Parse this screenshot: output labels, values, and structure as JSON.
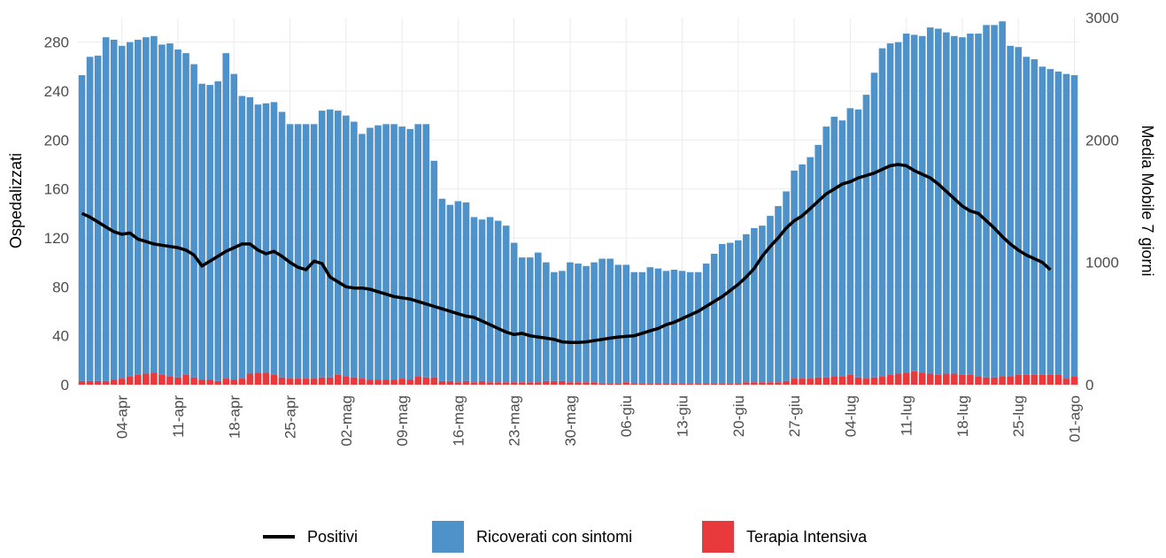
{
  "chart_data": {
    "type": "bar",
    "stacked": true,
    "y_label": "Ospedalizzati",
    "y2_label": "Media Mobile 7 giorni",
    "ylim": [
      0,
      300
    ],
    "yticks": [
      0,
      40,
      80,
      120,
      160,
      200,
      240,
      280
    ],
    "y2lim": [
      0,
      3000
    ],
    "y2ticks": [
      0,
      1000,
      2000,
      3000
    ],
    "grid": true,
    "legend": "bottom",
    "categories": [
      null,
      null,
      null,
      null,
      null,
      "04-apr",
      null,
      null,
      null,
      null,
      null,
      null,
      "11-apr",
      null,
      null,
      null,
      null,
      null,
      null,
      "18-apr",
      null,
      null,
      null,
      null,
      null,
      null,
      "25-apr",
      null,
      null,
      null,
      null,
      null,
      null,
      "02-mag",
      null,
      null,
      null,
      null,
      null,
      null,
      "09-mag",
      null,
      null,
      null,
      null,
      null,
      null,
      "16-mag",
      null,
      null,
      null,
      null,
      null,
      null,
      "23-mag",
      null,
      null,
      null,
      null,
      null,
      null,
      "30-mag",
      null,
      null,
      null,
      null,
      null,
      null,
      "06-giu",
      null,
      null,
      null,
      null,
      null,
      null,
      "13-giu",
      null,
      null,
      null,
      null,
      null,
      null,
      "20-giu",
      null,
      null,
      null,
      null,
      null,
      null,
      "27-giu",
      null,
      null,
      null,
      null,
      null,
      null,
      "04-lug",
      null,
      null,
      null,
      null,
      null,
      null,
      "11-lug",
      null,
      null,
      null,
      null,
      null,
      null,
      "18-lug",
      null,
      null,
      null,
      null,
      null,
      null,
      "25-lug",
      null,
      null,
      null,
      null,
      null,
      null,
      "01-ago"
    ],
    "series": [
      {
        "name": "Positivi",
        "type": "line",
        "axis": "y2",
        "color": "#000000",
        "values": [
          1400,
          1370,
          1330,
          1290,
          1250,
          1230,
          1240,
          1190,
          1170,
          1150,
          1140,
          1130,
          1120,
          1100,
          1060,
          970,
          1010,
          1050,
          1090,
          1120,
          1150,
          1150,
          1100,
          1070,
          1090,
          1050,
          1000,
          960,
          940,
          1010,
          990,
          880,
          840,
          800,
          790,
          790,
          780,
          760,
          740,
          720,
          710,
          700,
          680,
          660,
          640,
          620,
          600,
          580,
          560,
          550,
          520,
          490,
          460,
          430,
          410,
          420,
          400,
          390,
          380,
          370,
          350,
          345,
          345,
          350,
          360,
          370,
          380,
          390,
          395,
          400,
          420,
          440,
          460,
          490,
          510,
          540,
          570,
          600,
          640,
          680,
          720,
          770,
          820,
          880,
          950,
          1050,
          1130,
          1200,
          1280,
          1340,
          1380,
          1440,
          1500,
          1560,
          1600,
          1640,
          1660,
          1690,
          1710,
          1730,
          1760,
          1790,
          1800,
          1790,
          1750,
          1720,
          1690,
          1640,
          1580,
          1520,
          1460,
          1420,
          1400,
          1340,
          1280,
          1210,
          1150,
          1100,
          1060,
          1030,
          1000,
          940,
          null,
          null,
          null
        ]
      },
      {
        "name": "Ricoverati con sintomi",
        "type": "bar",
        "color": "#4f91c9",
        "values": [
          250,
          265,
          266,
          281,
          278,
          272,
          273,
          274,
          275,
          275,
          270,
          272,
          268,
          263,
          256,
          242,
          241,
          245,
          266,
          250,
          231,
          226,
          219,
          220,
          223,
          217,
          208,
          208,
          208,
          208,
          218,
          219,
          216,
          213,
          209,
          200,
          206,
          208,
          209,
          209,
          206,
          205,
          206,
          207,
          177,
          149,
          144,
          148,
          146,
          135,
          132,
          135,
          132,
          128,
          114,
          102,
          102,
          106,
          97,
          89,
          90,
          98,
          97,
          95,
          98,
          102,
          102,
          97,
          96,
          91,
          91,
          95,
          94,
          92,
          93,
          92,
          91,
          91,
          98,
          106,
          114,
          115,
          117,
          121,
          126,
          128,
          136,
          144,
          155,
          170,
          175,
          181,
          190,
          205,
          212,
          209,
          218,
          219,
          232,
          249,
          268,
          271,
          271,
          277,
          275,
          275,
          283,
          283,
          279,
          276,
          276,
          279,
          280,
          288,
          288,
          290,
          270,
          268,
          260,
          258,
          252,
          250,
          248,
          249,
          246
        ]
      },
      {
        "name": "Terapia Intensiva",
        "type": "bar",
        "color": "#e8393c",
        "values": [
          3,
          3,
          3,
          3,
          4,
          5,
          7,
          8,
          9,
          10,
          8,
          7,
          6,
          8,
          6,
          4,
          4,
          3,
          5,
          4,
          5,
          9,
          10,
          10,
          8,
          6,
          5,
          5,
          5,
          5,
          6,
          6,
          8,
          7,
          6,
          5,
          4,
          4,
          4,
          4,
          5,
          4,
          7,
          6,
          6,
          3,
          3,
          2,
          3,
          2,
          3,
          2,
          2,
          2,
          2,
          2,
          2,
          2,
          3,
          3,
          3,
          2,
          2,
          2,
          2,
          1,
          1,
          1,
          2,
          1,
          1,
          1,
          1,
          1,
          1,
          1,
          1,
          1,
          1,
          1,
          1,
          1,
          1,
          2,
          2,
          2,
          2,
          2,
          3,
          5,
          5,
          5,
          6,
          6,
          7,
          7,
          8,
          6,
          5,
          6,
          7,
          8,
          9,
          10,
          11,
          10,
          9,
          8,
          9,
          9,
          8,
          8,
          7,
          6,
          6,
          7,
          7,
          8,
          8,
          8,
          8,
          8,
          8,
          5,
          7
        ]
      }
    ]
  }
}
